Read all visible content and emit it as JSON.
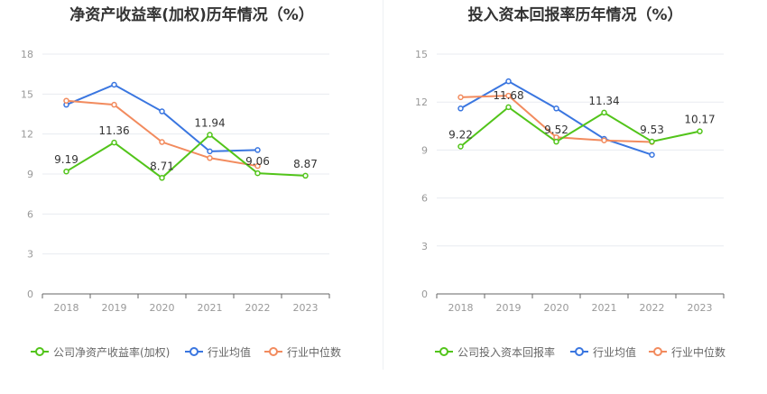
{
  "chart_data": [
    {
      "type": "line",
      "title": "净资产收益率(加权)历年情况（%）",
      "categories": [
        "2018",
        "2019",
        "2020",
        "2021",
        "2022",
        "2023"
      ],
      "ylim": [
        0,
        18
      ],
      "yticks": [
        0,
        3,
        6,
        9,
        12,
        15,
        18
      ],
      "grid": true,
      "legend_position": "bottom",
      "series": [
        {
          "name": "公司净资产收益率(加权)",
          "color": "#52c41a",
          "values": [
            9.19,
            11.36,
            8.71,
            11.94,
            9.06,
            8.87
          ],
          "labels": [
            "9.19",
            "11.36",
            "8.71",
            "11.94",
            "9.06",
            "8.87"
          ]
        },
        {
          "name": "行业均值",
          "color": "#3a76e0",
          "values": [
            14.2,
            15.7,
            13.7,
            10.7,
            10.8,
            null
          ]
        },
        {
          "name": "行业中位数",
          "color": "#f28b5e",
          "values": [
            14.5,
            14.2,
            11.4,
            10.2,
            9.6,
            null
          ]
        }
      ]
    },
    {
      "type": "line",
      "title": "投入资本回报率历年情况（%）",
      "categories": [
        "2018",
        "2019",
        "2020",
        "2021",
        "2022",
        "2023"
      ],
      "ylim": [
        0,
        15
      ],
      "yticks": [
        0,
        3,
        6,
        9,
        12,
        15
      ],
      "grid": true,
      "legend_position": "bottom",
      "series": [
        {
          "name": "公司投入资本回报率",
          "color": "#52c41a",
          "values": [
            9.22,
            11.68,
            9.52,
            11.34,
            9.53,
            10.17
          ],
          "labels": [
            "9.22",
            "11.68",
            "9.52",
            "11.34",
            "9.53",
            "10.17"
          ]
        },
        {
          "name": "行业均值",
          "color": "#3a76e0",
          "values": [
            11.6,
            13.3,
            11.6,
            9.7,
            8.7,
            null
          ]
        },
        {
          "name": "行业中位数",
          "color": "#f28b5e",
          "values": [
            12.3,
            12.4,
            9.8,
            9.6,
            9.5,
            null
          ]
        }
      ]
    }
  ]
}
